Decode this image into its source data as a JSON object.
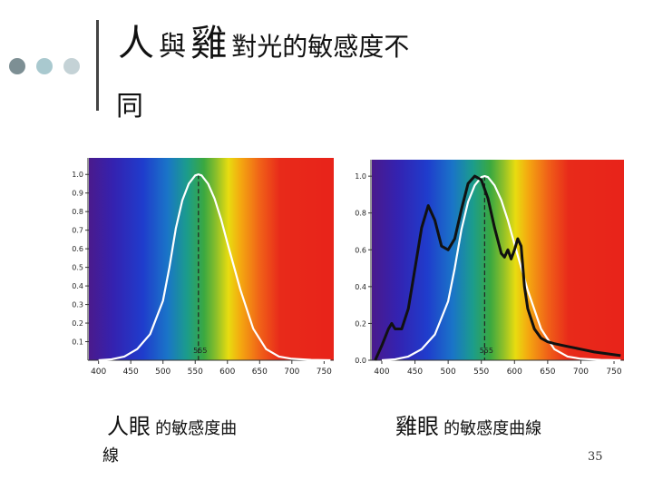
{
  "slide": {
    "title_part1": "人",
    "title_part2": "與",
    "title_part3": "雞",
    "title_part4": "對光的敏感度不",
    "title_line2": "同",
    "page_number": "35"
  },
  "captions": {
    "left_big": "人眼",
    "left_small": "的敏感度曲",
    "left_wrap": "線",
    "right_big": "雞眼",
    "right_small": "的敏感度曲線"
  },
  "colors": {
    "dot1": "#7d8f94",
    "dot2": "#a9c9cf",
    "dot3": "#c4d2d6",
    "human_curve": "#ffffff",
    "chicken_curve": "#111111"
  },
  "chart_data": [
    {
      "type": "line",
      "x_ticks": [
        "400",
        "450",
        "500",
        "550",
        "600",
        "650",
        "700",
        "750"
      ],
      "y_ticks": [
        "0.1",
        "0.2",
        "0.3",
        "0.4",
        "0.5",
        "0.6",
        "0.7",
        "0.8",
        "0.9",
        "1.0"
      ],
      "xlim": [
        385,
        765
      ],
      "ylim": [
        0,
        1.05
      ],
      "peak_label": "555",
      "series": [
        {
          "x": [
            400,
            420,
            440,
            460,
            480,
            500,
            510,
            520,
            530,
            540,
            550,
            555,
            560,
            570,
            580,
            590,
            600,
            620,
            640,
            660,
            680,
            700,
            730,
            760
          ],
          "y": [
            0.0,
            0.005,
            0.02,
            0.06,
            0.14,
            0.32,
            0.5,
            0.71,
            0.86,
            0.95,
            0.995,
            1.0,
            0.995,
            0.95,
            0.87,
            0.76,
            0.63,
            0.38,
            0.17,
            0.06,
            0.02,
            0.008,
            0.002,
            0.0
          ]
        }
      ]
    },
    {
      "type": "line",
      "x_ticks": [
        "400",
        "450",
        "500",
        "550",
        "600",
        "650",
        "700",
        "750"
      ],
      "y_ticks": [
        "0.0",
        "0.2",
        "0.4",
        "0.6",
        "0.8",
        "1.0"
      ],
      "xlim": [
        385,
        765
      ],
      "ylim": [
        0,
        1.05
      ],
      "peak_label": "555",
      "series": [
        {
          "x": [
            400,
            420,
            440,
            460,
            480,
            500,
            510,
            520,
            530,
            540,
            550,
            555,
            560,
            570,
            580,
            590,
            600,
            620,
            640,
            660,
            680,
            700,
            730,
            760
          ],
          "y": [
            0.0,
            0.005,
            0.02,
            0.06,
            0.14,
            0.32,
            0.5,
            0.71,
            0.86,
            0.95,
            0.995,
            1.0,
            0.995,
            0.95,
            0.87,
            0.76,
            0.63,
            0.38,
            0.17,
            0.06,
            0.02,
            0.008,
            0.002,
            0.0
          ]
        },
        {
          "x": [
            390,
            400,
            410,
            415,
            420,
            430,
            440,
            450,
            460,
            470,
            480,
            490,
            500,
            510,
            520,
            530,
            540,
            550,
            560,
            570,
            580,
            585,
            590,
            595,
            600,
            605,
            610,
            615,
            620,
            630,
            640,
            650,
            660,
            680,
            700,
            720,
            740,
            760
          ],
          "y": [
            0.0,
            0.08,
            0.17,
            0.2,
            0.17,
            0.17,
            0.28,
            0.5,
            0.72,
            0.84,
            0.76,
            0.62,
            0.6,
            0.66,
            0.82,
            0.96,
            1.0,
            0.98,
            0.88,
            0.72,
            0.58,
            0.56,
            0.6,
            0.55,
            0.6,
            0.66,
            0.62,
            0.4,
            0.28,
            0.17,
            0.12,
            0.1,
            0.09,
            0.075,
            0.06,
            0.045,
            0.035,
            0.025
          ]
        }
      ]
    }
  ]
}
